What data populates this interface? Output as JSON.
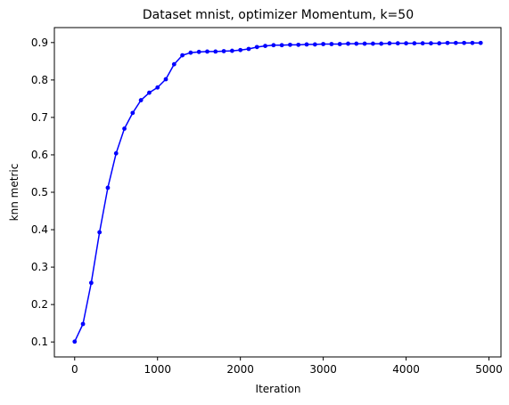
{
  "chart_data": {
    "type": "line",
    "title": "Dataset mnist, optimizer Momentum, k=50",
    "xlabel": "Iteration",
    "ylabel": "knn metric",
    "xlim": [
      -245,
      5145
    ],
    "ylim": [
      0.06,
      0.94
    ],
    "xticks": [
      0,
      1000,
      2000,
      3000,
      4000,
      5000
    ],
    "yticks": [
      0.1,
      0.2,
      0.3,
      0.4,
      0.5,
      0.6,
      0.7,
      0.8,
      0.9
    ],
    "grid": false,
    "series": [
      {
        "name": "knn metric",
        "color": "#0000ff",
        "marker": "circle",
        "x": [
          0,
          100,
          200,
          300,
          400,
          500,
          600,
          700,
          800,
          900,
          1000,
          1100,
          1200,
          1300,
          1400,
          1500,
          1600,
          1700,
          1800,
          1900,
          2000,
          2100,
          2200,
          2300,
          2400,
          2500,
          2600,
          2700,
          2800,
          2900,
          3000,
          3100,
          3200,
          3300,
          3400,
          3500,
          3600,
          3700,
          3800,
          3900,
          4000,
          4100,
          4200,
          4300,
          4400,
          4500,
          4600,
          4700,
          4800,
          4900
        ],
        "y": [
          0.101,
          0.148,
          0.258,
          0.393,
          0.512,
          0.604,
          0.67,
          0.712,
          0.746,
          0.766,
          0.78,
          0.802,
          0.842,
          0.866,
          0.873,
          0.875,
          0.876,
          0.876,
          0.877,
          0.878,
          0.88,
          0.883,
          0.888,
          0.891,
          0.893,
          0.893,
          0.894,
          0.894,
          0.895,
          0.895,
          0.896,
          0.896,
          0.896,
          0.897,
          0.897,
          0.897,
          0.897,
          0.897,
          0.898,
          0.898,
          0.898,
          0.898,
          0.898,
          0.898,
          0.898,
          0.899,
          0.899,
          0.899,
          0.899,
          0.899
        ]
      }
    ]
  }
}
